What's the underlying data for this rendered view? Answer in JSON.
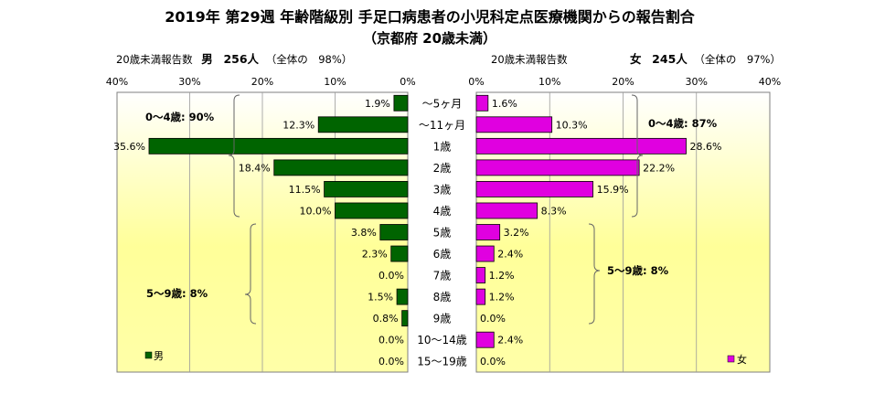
{
  "chart_data": {
    "type": "bar",
    "title_line1": "2019年 第29週 年齢階級別 手足口病患者の小児科定点医療機関からの報告割合",
    "title_line2": "（京都府 20歳未満）",
    "categories": [
      "～5ヶ月",
      "～11ヶ月",
      "1歳",
      "2歳",
      "3歳",
      "4歳",
      "5歳",
      "6歳",
      "7歳",
      "8歳",
      "9歳",
      "10～14歳",
      "15～19歳"
    ],
    "series": [
      {
        "name": "男",
        "values": [
          1.9,
          12.3,
          35.6,
          18.4,
          11.5,
          10.0,
          3.8,
          2.3,
          0.0,
          1.5,
          0.8,
          0.0,
          0.0
        ],
        "labels": [
          "1.9%",
          "12.3%",
          "35.6%",
          "18.4%",
          "11.5%",
          "10.0%",
          "3.8%",
          "2.3%",
          "0.0%",
          "1.5%",
          "0.8%",
          "0.0%",
          "0.0%"
        ],
        "color": "#006400"
      },
      {
        "name": "女",
        "values": [
          1.6,
          10.3,
          28.6,
          22.2,
          15.9,
          8.3,
          3.2,
          2.4,
          1.2,
          1.2,
          0.0,
          2.4,
          0.0
        ],
        "labels": [
          "1.6%",
          "10.3%",
          "28.6%",
          "22.2%",
          "15.9%",
          "8.3%",
          "3.2%",
          "2.4%",
          "1.2%",
          "1.2%",
          "0.0%",
          "2.4%",
          "0.0%"
        ],
        "color": "#e000e0"
      }
    ],
    "left_panel": {
      "header_prefix": "20歳未満報告数",
      "header_sex": "男",
      "header_count": "256人",
      "header_share": "（全体の　98%）",
      "ticks": [
        "40%",
        "30%",
        "20%",
        "10%",
        "0%"
      ],
      "xlim": [
        40,
        0
      ],
      "legend": "男",
      "group_labels": [
        "0～4歳: 90%",
        "5～9歳: 8%"
      ]
    },
    "right_panel": {
      "header_prefix": "20歳未満報告数",
      "header_sex": "女",
      "header_count": "245人",
      "header_share": "（全体の　97%）",
      "ticks": [
        "0%",
        "10%",
        "20%",
        "30%",
        "40%"
      ],
      "xlim": [
        0,
        40
      ],
      "legend": "女",
      "group_labels": [
        "0～4歳: 87%",
        "5～9歳: 8%"
      ]
    },
    "grid": true,
    "background_gradient": [
      "#ffffff",
      "#ffff99"
    ],
    "border_color": "#7f7f7f"
  }
}
